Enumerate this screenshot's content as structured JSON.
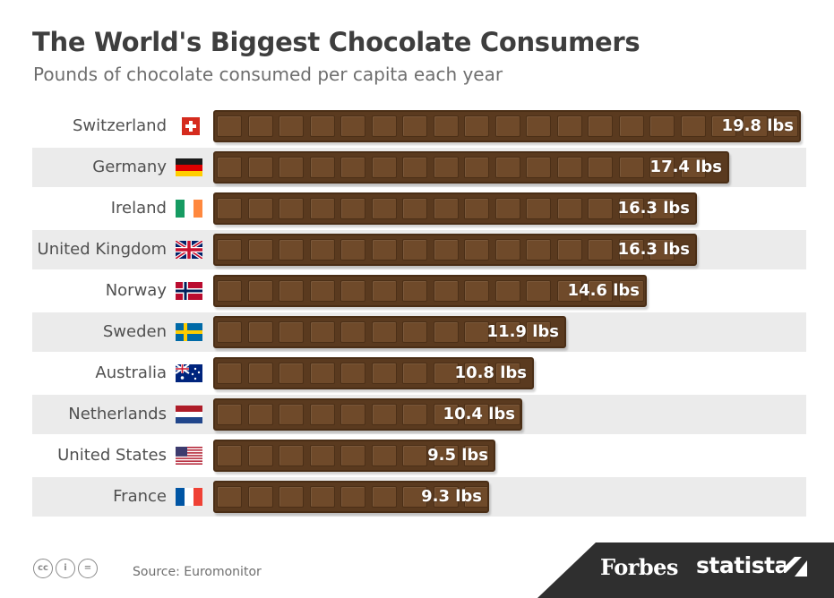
{
  "header": {
    "title": "The World's Biggest Chocolate Consumers",
    "subtitle": "Pounds of chocolate consumed per capita each year"
  },
  "chart_data": {
    "type": "bar",
    "orientation": "horizontal",
    "title": "The World's Biggest Chocolate Consumers",
    "subtitle": "Pounds of chocolate consumed per capita each year",
    "unit": "lbs",
    "categories": [
      "Switzerland",
      "Germany",
      "Ireland",
      "United Kingdom",
      "Norway",
      "Sweden",
      "Australia",
      "Netherlands",
      "United States",
      "France"
    ],
    "values": [
      19.8,
      17.4,
      16.3,
      16.3,
      14.6,
      11.9,
      10.8,
      10.4,
      9.5,
      9.3
    ],
    "labels": [
      "19.8 lbs",
      "17.4 lbs",
      "16.3 lbs",
      "16.3 lbs",
      "14.6 lbs",
      "11.9 lbs",
      "10.8 lbs",
      "10.4 lbs",
      "9.5 lbs",
      "9.3 lbs"
    ],
    "flags": [
      "switzerland-flag-icon",
      "germany-flag-icon",
      "ireland-flag-icon",
      "united-kingdom-flag-icon",
      "norway-flag-icon",
      "sweden-flag-icon",
      "australia-flag-icon",
      "netherlands-flag-icon",
      "united-states-flag-icon",
      "france-flag-icon"
    ],
    "xlim": [
      0,
      19.8
    ],
    "grid": false,
    "legend": "none"
  },
  "footer": {
    "source": "Source: Euromonitor",
    "license_icons": [
      "cc",
      "i",
      "="
    ],
    "brand_forbes": "Forbes",
    "brand_statista": "statista"
  },
  "colors": {
    "bar": "#5a3a1f",
    "segment": "#6f4a2a",
    "stripe": "#ebebeb",
    "footer": "#2f2f2f",
    "title": "#3e3e3e"
  }
}
